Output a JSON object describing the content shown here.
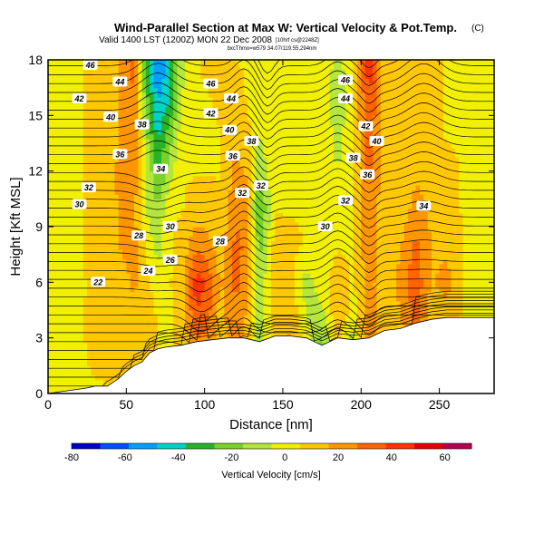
{
  "chart_data": {
    "type": "heatmap",
    "title": "Wind-Parallel Section at Max W: Vertical Velocity & Pot.Temp.",
    "title_mark": "(C)",
    "subtitle": "Valid 1400 LST (1200Z) MON 22 Dec 2008",
    "subtitle_note": "[10hrf cs@2248Z]",
    "small_note": "bxcThmo=w579 34.07/119.55,294nm",
    "xlabel": "Distance [nm]",
    "ylabel": "Height [Kft MSL]",
    "xlim": [
      0,
      285
    ],
    "ylim": [
      0,
      18
    ],
    "xticks": [
      "0",
      "50",
      "100",
      "150",
      "200",
      "250"
    ],
    "yticks": [
      "0",
      "3",
      "6",
      "9",
      "12",
      "15",
      "18"
    ],
    "colorbar": {
      "label": "Vertical Velocity [cm/s]",
      "ticks": [
        "-80",
        "-60",
        "-40",
        "-20",
        "0",
        "20",
        "40",
        "60"
      ],
      "range": [
        -80,
        70
      ],
      "colors": [
        "#0000c8",
        "#0050ff",
        "#00a0ff",
        "#00d2c8",
        "#28b428",
        "#78d228",
        "#b4e63c",
        "#f0f000",
        "#ffc800",
        "#ff9600",
        "#ff6400",
        "#ff3200",
        "#e60000",
        "#b40050"
      ]
    },
    "columns": [
      {
        "x": 0,
        "w": [
          5,
          5,
          5,
          5,
          5,
          5,
          5,
          5,
          5,
          5
        ]
      },
      {
        "x": 20,
        "w": [
          5,
          5,
          5,
          5,
          5,
          5,
          5,
          5,
          5,
          5
        ]
      },
      {
        "x": 40,
        "w": [
          5,
          8,
          10,
          8,
          15,
          15,
          15,
          12,
          10,
          12
        ]
      },
      {
        "x": 55,
        "w": [
          8,
          12,
          15,
          18,
          20,
          20,
          22,
          25,
          28,
          30
        ]
      },
      {
        "x": 62,
        "w": [
          5,
          10,
          12,
          10,
          5,
          -5,
          0,
          -10,
          -20,
          -30
        ]
      },
      {
        "x": 70,
        "w": [
          3,
          5,
          5,
          0,
          -10,
          -15,
          -30,
          -40,
          -50,
          -60
        ]
      },
      {
        "x": 78,
        "w": [
          0,
          5,
          5,
          5,
          5,
          5,
          -10,
          -20,
          -40,
          -40
        ]
      },
      {
        "x": 85,
        "w": [
          5,
          8,
          10,
          12,
          8,
          5,
          5,
          0,
          -5,
          -10
        ]
      },
      {
        "x": 95,
        "w": [
          5,
          20,
          35,
          45,
          25,
          10,
          5,
          5,
          5,
          5
        ]
      },
      {
        "x": 102,
        "w": [
          5,
          15,
          30,
          35,
          20,
          10,
          5,
          5,
          5,
          8
        ]
      },
      {
        "x": 110,
        "w": [
          5,
          10,
          12,
          15,
          10,
          8,
          5,
          5,
          8,
          10
        ]
      },
      {
        "x": 120,
        "w": [
          5,
          15,
          25,
          30,
          30,
          25,
          20,
          15,
          10,
          5
        ]
      },
      {
        "x": 127,
        "w": [
          5,
          10,
          15,
          20,
          25,
          20,
          15,
          10,
          5,
          5
        ]
      },
      {
        "x": 135,
        "w": [
          -20,
          -15,
          -10,
          -15,
          -20,
          -30,
          -15,
          -5,
          0,
          5
        ]
      },
      {
        "x": 145,
        "w": [
          10,
          15,
          15,
          15,
          10,
          5,
          5,
          5,
          5,
          5
        ]
      },
      {
        "x": 155,
        "w": [
          15,
          20,
          15,
          10,
          8,
          5,
          5,
          5,
          5,
          5
        ]
      },
      {
        "x": 165,
        "w": [
          5,
          5,
          -5,
          -10,
          5,
          5,
          5,
          5,
          5,
          5
        ]
      },
      {
        "x": 175,
        "w": [
          -20,
          -25,
          -10,
          0,
          5,
          5,
          5,
          5,
          5,
          5
        ]
      },
      {
        "x": 185,
        "w": [
          5,
          8,
          15,
          10,
          5,
          0,
          -5,
          -10,
          -15,
          -10
        ]
      },
      {
        "x": 195,
        "w": [
          -10,
          -20,
          0,
          5,
          5,
          5,
          5,
          5,
          5,
          5
        ]
      },
      {
        "x": 205,
        "w": [
          25,
          30,
          25,
          20,
          25,
          25,
          30,
          35,
          40,
          45
        ]
      },
      {
        "x": 215,
        "w": [
          5,
          8,
          8,
          10,
          10,
          10,
          10,
          10,
          10,
          10
        ]
      },
      {
        "x": 225,
        "w": [
          10,
          12,
          15,
          20,
          15,
          10,
          10,
          8,
          8,
          8
        ]
      },
      {
        "x": 235,
        "w": [
          20,
          30,
          30,
          35,
          30,
          20,
          15,
          10,
          10,
          10
        ]
      },
      {
        "x": 245,
        "w": [
          5,
          8,
          10,
          15,
          15,
          15,
          10,
          8,
          8,
          8
        ]
      },
      {
        "x": 255,
        "w": [
          5,
          8,
          10,
          20,
          15,
          10,
          8,
          5,
          5,
          5
        ]
      },
      {
        "x": 265,
        "w": [
          5,
          5,
          5,
          5,
          5,
          5,
          5,
          5,
          5,
          5
        ]
      },
      {
        "x": 285,
        "w": [
          5,
          5,
          5,
          5,
          5,
          5,
          5,
          5,
          5,
          5
        ]
      }
    ],
    "terrain": [
      [
        0,
        0
      ],
      [
        25,
        0.3
      ],
      [
        30,
        0.4
      ],
      [
        38,
        0.4
      ],
      [
        45,
        0.8
      ],
      [
        50,
        1.2
      ],
      [
        55,
        1.5
      ],
      [
        60,
        1.7
      ],
      [
        65,
        2.2
      ],
      [
        70,
        2.4
      ],
      [
        75,
        2.5
      ],
      [
        85,
        2.6
      ],
      [
        95,
        2.8
      ],
      [
        105,
        2.9
      ],
      [
        115,
        3.0
      ],
      [
        125,
        3.0
      ],
      [
        135,
        2.8
      ],
      [
        145,
        3.1
      ],
      [
        155,
        3.1
      ],
      [
        165,
        3.0
      ],
      [
        175,
        2.6
      ],
      [
        185,
        3.0
      ],
      [
        195,
        2.9
      ],
      [
        205,
        3.0
      ],
      [
        215,
        3.4
      ],
      [
        225,
        3.5
      ],
      [
        235,
        3.8
      ],
      [
        245,
        4.0
      ],
      [
        255,
        4.1
      ],
      [
        265,
        4.1
      ],
      [
        275,
        4.1
      ],
      [
        285,
        4.1
      ]
    ],
    "theta_labels": [
      {
        "text": "46",
        "x": 27,
        "y": 17.7
      },
      {
        "text": "44",
        "x": 46,
        "y": 16.8
      },
      {
        "text": "42",
        "x": 20,
        "y": 15.9
      },
      {
        "text": "40",
        "x": 40,
        "y": 14.9
      },
      {
        "text": "38",
        "x": 60,
        "y": 14.5
      },
      {
        "text": "36",
        "x": 46,
        "y": 12.9
      },
      {
        "text": "34",
        "x": 72,
        "y": 12.1
      },
      {
        "text": "32",
        "x": 26,
        "y": 11.1
      },
      {
        "text": "30",
        "x": 20,
        "y": 10.2
      },
      {
        "text": "46",
        "x": 104,
        "y": 16.7
      },
      {
        "text": "44",
        "x": 117,
        "y": 15.9
      },
      {
        "text": "42",
        "x": 104,
        "y": 15.1
      },
      {
        "text": "40",
        "x": 116,
        "y": 14.2
      },
      {
        "text": "38",
        "x": 130,
        "y": 13.6
      },
      {
        "text": "36",
        "x": 118,
        "y": 12.8
      },
      {
        "text": "32",
        "x": 124,
        "y": 10.8
      },
      {
        "text": "32",
        "x": 136,
        "y": 11.2
      },
      {
        "text": "30",
        "x": 78,
        "y": 9.0
      },
      {
        "text": "28",
        "x": 58,
        "y": 8.5
      },
      {
        "text": "26",
        "x": 78,
        "y": 7.2
      },
      {
        "text": "24",
        "x": 64,
        "y": 6.6
      },
      {
        "text": "22",
        "x": 32,
        "y": 6.0
      },
      {
        "text": "28",
        "x": 110,
        "y": 8.2
      },
      {
        "text": "46",
        "x": 190,
        "y": 16.9
      },
      {
        "text": "44",
        "x": 190,
        "y": 15.9
      },
      {
        "text": "42",
        "x": 203,
        "y": 14.4
      },
      {
        "text": "40",
        "x": 210,
        "y": 13.6
      },
      {
        "text": "38",
        "x": 195,
        "y": 12.7
      },
      {
        "text": "36",
        "x": 204,
        "y": 11.8
      },
      {
        "text": "32",
        "x": 190,
        "y": 10.4
      },
      {
        "text": "30",
        "x": 177,
        "y": 9.0
      },
      {
        "text": "34",
        "x": 240,
        "y": 10.1
      }
    ]
  }
}
